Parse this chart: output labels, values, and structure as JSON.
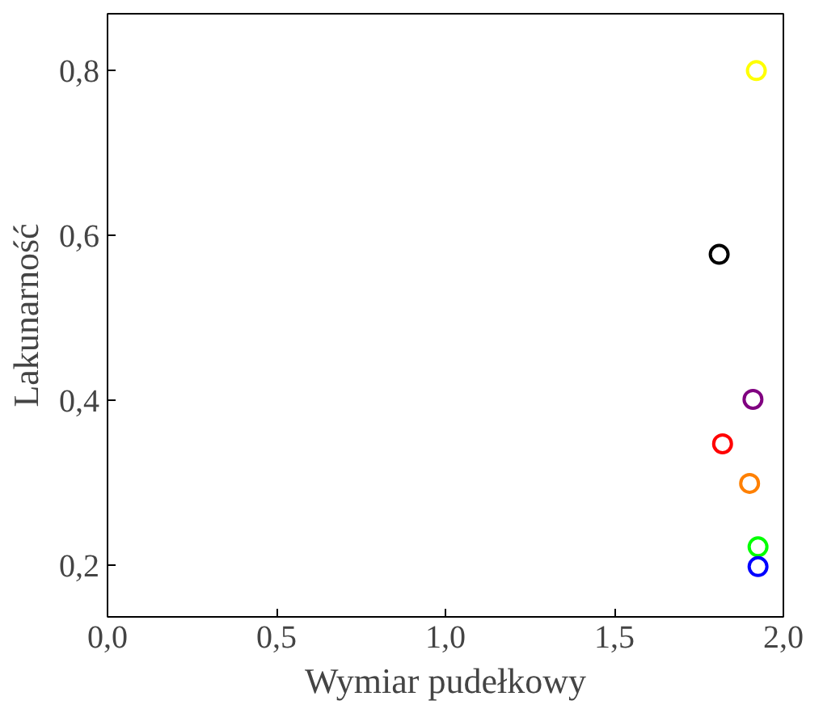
{
  "chart_data": {
    "type": "scatter",
    "xlabel": "Wymiar pudełkowy",
    "ylabel": "Lakunarność",
    "marker": "circle",
    "grid": false,
    "xlim": [
      0,
      2
    ],
    "ylim": [
      0.137,
      0.869
    ],
    "xticks": [
      {
        "value": 0,
        "label": "0,0"
      },
      {
        "value": 0.5,
        "label": "0,5"
      },
      {
        "value": 1,
        "label": "1,0"
      },
      {
        "value": 1.5,
        "label": "1,5"
      },
      {
        "value": 2,
        "label": "2,0"
      }
    ],
    "yticks": [
      {
        "value": 0.2,
        "label": "0,2"
      },
      {
        "value": 0.4,
        "label": "0,4"
      },
      {
        "value": 0.6,
        "label": "0,6"
      },
      {
        "value": 0.8,
        "label": "0,8"
      }
    ],
    "series": [
      {
        "color": "#ffff00",
        "x": [
          1.92
        ],
        "values": [
          0.8
        ]
      },
      {
        "color": "#000000",
        "x": [
          1.81
        ],
        "values": [
          0.577
        ]
      },
      {
        "color": "#800080",
        "x": [
          1.91
        ],
        "values": [
          0.401
        ]
      },
      {
        "color": "#ff0000",
        "x": [
          1.82
        ],
        "values": [
          0.347
        ]
      },
      {
        "color": "#ff8000",
        "x": [
          1.9
        ],
        "values": [
          0.299
        ]
      },
      {
        "color": "#00ff00",
        "x": [
          1.925
        ],
        "values": [
          0.222
        ]
      },
      {
        "color": "#0000ff",
        "x": [
          1.925
        ],
        "values": [
          0.198
        ]
      }
    ]
  }
}
